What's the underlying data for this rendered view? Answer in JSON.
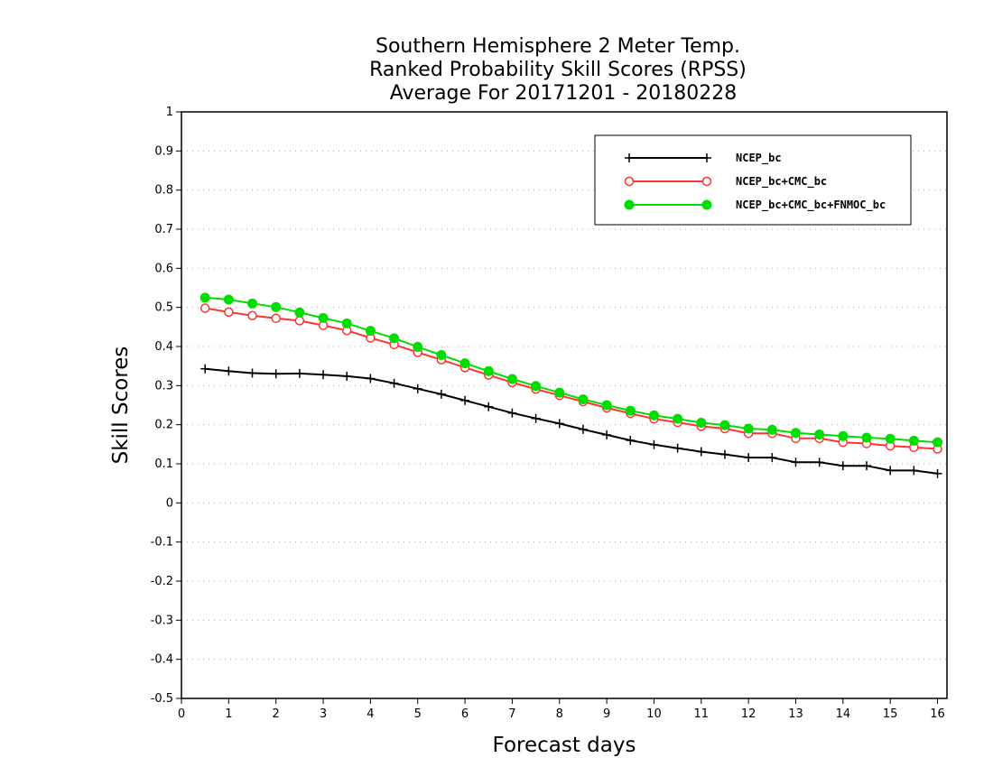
{
  "chart_data": {
    "type": "line",
    "title_lines": [
      "Southern Hemisphere 2 Meter Temp.",
      "Ranked Probability Skill Scores (RPSS)",
      "Average For 20171201 - 20180228"
    ],
    "xlabel": "Forecast days",
    "ylabel": "Skill Scores",
    "xlim": [
      0,
      16.2
    ],
    "ylim": [
      -0.5,
      1
    ],
    "x_ticks": [
      "0",
      "1",
      "2",
      "3",
      "4",
      "5",
      "6",
      "7",
      "8",
      "9",
      "10",
      "11",
      "12",
      "13",
      "14",
      "15",
      "16"
    ],
    "y_ticks": [
      "1",
      "0.9",
      "0.8",
      "0.7",
      "0.6",
      "0.5",
      "0.4",
      "0.3",
      "0.2",
      "0.1",
      "0",
      "-0.1",
      "-0.2",
      "-0.3",
      "-0.4",
      "-0.5"
    ],
    "grid": "horizontal dotted",
    "legend_position": "top-right",
    "x": [
      0.5,
      1,
      1.5,
      2,
      2.5,
      3,
      3.5,
      4,
      4.5,
      5,
      5.5,
      6,
      6.5,
      7,
      7.5,
      8,
      8.5,
      9,
      9.5,
      10,
      10.5,
      11,
      11.5,
      12,
      12.5,
      13,
      13.5,
      14,
      14.5,
      15,
      15.5,
      16
    ],
    "series": [
      {
        "name": "NCEP_bc",
        "color": "#000000",
        "marker": "plus",
        "values": [
          0.343,
          0.337,
          0.332,
          0.33,
          0.331,
          0.328,
          0.324,
          0.318,
          0.306,
          0.292,
          0.278,
          0.262,
          0.246,
          0.23,
          0.216,
          0.203,
          0.188,
          0.174,
          0.16,
          0.149,
          0.14,
          0.131,
          0.124,
          0.116,
          0.116,
          0.104,
          0.104,
          0.095,
          0.095,
          0.083,
          0.083,
          0.075
        ]
      },
      {
        "name": "NCEP_bc+CMC_bc",
        "color": "#ff3333",
        "marker": "open-circle",
        "values": [
          0.498,
          0.488,
          0.479,
          0.472,
          0.466,
          0.454,
          0.441,
          0.422,
          0.405,
          0.385,
          0.366,
          0.346,
          0.327,
          0.308,
          0.291,
          0.275,
          0.259,
          0.243,
          0.229,
          0.215,
          0.206,
          0.196,
          0.19,
          0.178,
          0.178,
          0.165,
          0.165,
          0.155,
          0.152,
          0.146,
          0.142,
          0.138
        ]
      },
      {
        "name": "NCEP_bc+CMC_bc+FNMOC_bc",
        "color": "#00dd00",
        "marker": "filled-circle",
        "values": [
          0.525,
          0.52,
          0.51,
          0.501,
          0.487,
          0.473,
          0.459,
          0.44,
          0.421,
          0.399,
          0.378,
          0.357,
          0.337,
          0.317,
          0.299,
          0.282,
          0.265,
          0.25,
          0.236,
          0.224,
          0.215,
          0.205,
          0.199,
          0.19,
          0.187,
          0.179,
          0.175,
          0.171,
          0.167,
          0.164,
          0.159,
          0.155
        ]
      }
    ]
  }
}
